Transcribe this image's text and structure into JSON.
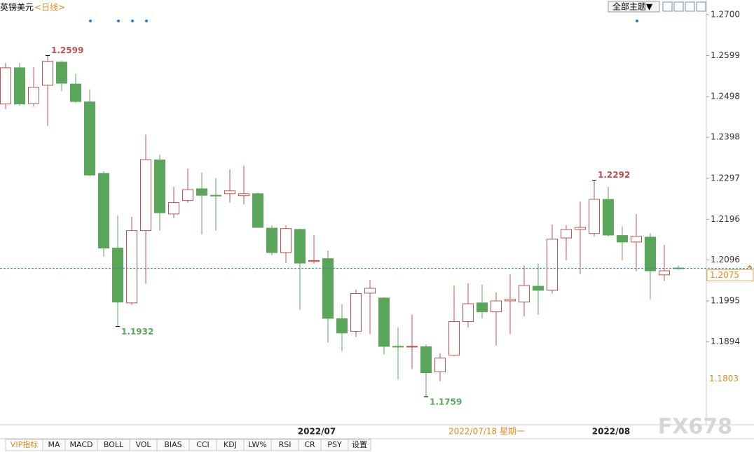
{
  "chart_data": {
    "type": "candlestick",
    "title": "英镑美元",
    "period": "<日线>",
    "theme_button": "全部主题▼",
    "categories": [
      null,
      null,
      null,
      null,
      null,
      null,
      null,
      null,
      null,
      null,
      null,
      null,
      null,
      null,
      null,
      null,
      null,
      null,
      null,
      null,
      null,
      null,
      "2022/07",
      null,
      null,
      null,
      null,
      null,
      null,
      null,
      null,
      null,
      null,
      null,
      null,
      null,
      null,
      null,
      null,
      null,
      null,
      null,
      null,
      "2022/08",
      null,
      null,
      null,
      null,
      null
    ],
    "open": [
      1.248,
      1.2569,
      1.2481,
      1.2526,
      1.2583,
      1.2529,
      1.2485,
      1.2309,
      1.2125,
      1.199,
      1.2168,
      1.2342,
      1.2209,
      1.2242,
      1.2271,
      1.2255,
      1.2259,
      1.2254,
      1.2259,
      1.2174,
      1.2114,
      1.2171,
      1.2092,
      1.2099,
      1.1951,
      1.192,
      1.2014,
      1.2002,
      1.1883,
      1.1882,
      1.1882,
      1.182,
      1.1861,
      1.1944,
      1.199,
      1.1968,
      1.1995,
      1.1992,
      1.2031,
      1.2021,
      1.215,
      1.2171,
      1.2161,
      1.2245,
      1.2156,
      1.214,
      1.2152,
      1.2059,
      1.2076
    ],
    "high": [
      1.2581,
      1.2581,
      1.2571,
      1.2599,
      1.2586,
      1.2554,
      1.2516,
      1.2314,
      1.2206,
      1.2202,
      1.2404,
      1.2355,
      1.2276,
      1.2321,
      1.2311,
      1.2297,
      1.2319,
      1.2328,
      1.2262,
      1.2181,
      1.2181,
      1.2173,
      1.2157,
      1.2119,
      1.1987,
      1.2023,
      1.2047,
      1.2004,
      1.193,
      1.1961,
      1.1887,
      1.1866,
      1.2032,
      1.2038,
      1.2035,
      1.2016,
      1.2061,
      1.2082,
      1.2087,
      1.2183,
      1.2181,
      1.224,
      1.2292,
      1.2276,
      1.2179,
      1.2209,
      1.2162,
      1.2133,
      1.2082
    ],
    "low": [
      1.2467,
      1.2476,
      1.2473,
      1.2426,
      1.2512,
      1.2483,
      1.2302,
      1.2104,
      1.1932,
      1.1985,
      1.2037,
      1.2168,
      1.2199,
      1.2237,
      1.2159,
      1.2168,
      1.2237,
      1.2233,
      1.2174,
      1.2107,
      1.2088,
      1.1973,
      1.2087,
      1.1892,
      1.1871,
      1.1906,
      1.1913,
      1.1863,
      1.1801,
      1.1827,
      1.1759,
      1.1797,
      1.1859,
      1.193,
      1.1952,
      1.1885,
      1.1913,
      1.1957,
      1.1961,
      1.2013,
      1.2095,
      1.2061,
      1.2154,
      1.2154,
      1.2095,
      1.2068,
      1.1999,
      1.2044,
      1.2072
    ],
    "close": [
      1.2569,
      1.248,
      1.2521,
      1.2585,
      1.2531,
      1.2486,
      1.2305,
      1.2125,
      1.1992,
      1.2168,
      1.2343,
      1.2212,
      1.2237,
      1.2269,
      1.2255,
      1.2254,
      1.2266,
      1.2259,
      1.2176,
      1.2114,
      1.2173,
      1.2088,
      1.2094,
      1.1952,
      1.1916,
      1.2013,
      1.2026,
      1.1883,
      1.1882,
      1.1883,
      1.1818,
      1.1854,
      1.1944,
      1.1988,
      1.1968,
      1.1995,
      1.1999,
      1.2033,
      1.2021,
      1.2147,
      1.2171,
      1.2176,
      1.2245,
      1.2157,
      1.214,
      1.2154,
      1.2069,
      1.2069,
      1.2075
    ],
    "up_color": "#c0504d",
    "down_color": "#5aa55a",
    "ylim": [
      1.169,
      1.2736
    ],
    "yticks": [
      {
        "value": 1.27,
        "label": "1.2700"
      },
      1.2599,
      1.2498,
      1.2398,
      1.2297,
      1.2196,
      1.2096,
      1.1995,
      1.1894
    ],
    "crosshair": {
      "date": "2022/07/18 星期一",
      "value": 1.1803
    },
    "indicator_tabs": [
      "VIP指标",
      "MA",
      "MACD",
      "BOLL",
      "VOL",
      "BIAS",
      "CCI",
      "KDJ",
      "LW%",
      "RSI",
      "CR",
      "PSY",
      "设置"
    ],
    "watermark": "FX678"
  }
}
